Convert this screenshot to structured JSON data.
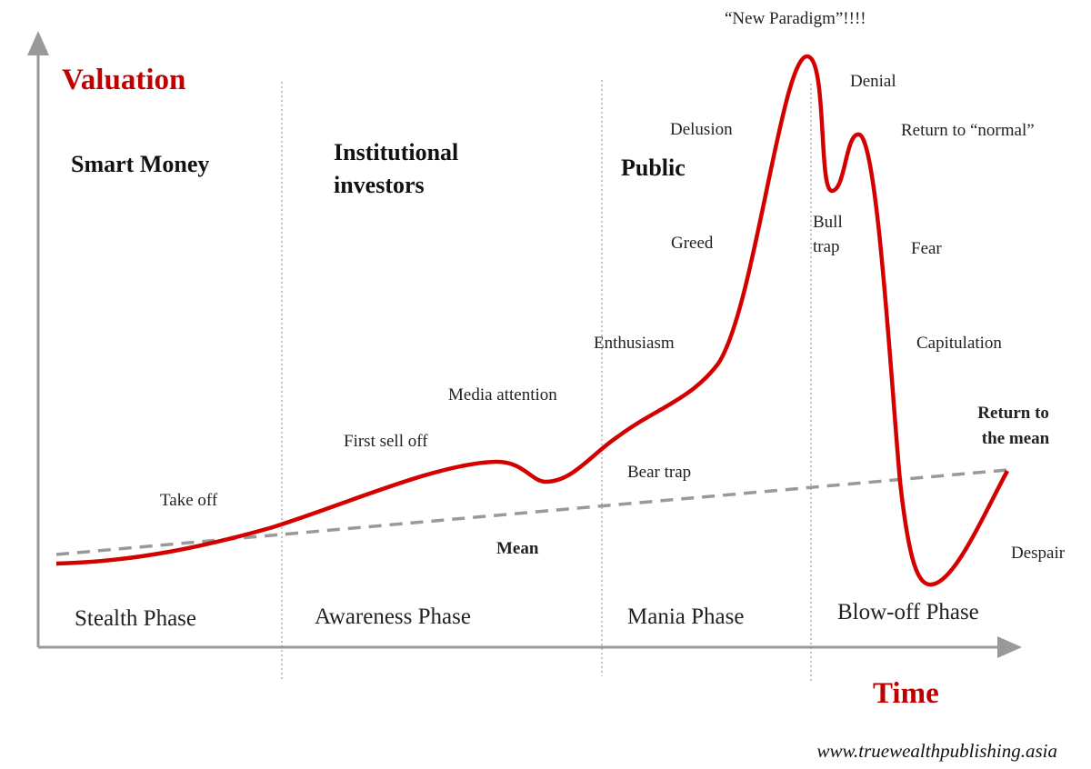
{
  "axes": {
    "y_label": "Valuation",
    "x_label": "Time"
  },
  "participants": {
    "smart_money": "Smart Money",
    "institutional": [
      "Institutional",
      "investors"
    ],
    "public": "Public"
  },
  "phases": [
    "Stealth Phase",
    "Awareness Phase",
    "Mania Phase",
    "Blow-off Phase"
  ],
  "annotations": {
    "take_off": "Take off",
    "first_sell_off": "First sell off",
    "media_attention": "Media attention",
    "bear_trap": "Bear trap",
    "enthusiasm": "Enthusiasm",
    "greed": "Greed",
    "delusion": "Delusion",
    "new_paradigm": "“New Paradigm”!!!!",
    "denial": "Denial",
    "return_to_normal": "Return to “normal”",
    "bull_trap": [
      "Bull",
      "trap"
    ],
    "fear": "Fear",
    "capitulation": "Capitulation",
    "despair": "Despair",
    "mean": "Mean",
    "return_to_mean": [
      "Return to",
      "the mean"
    ]
  },
  "source": "www.truewealthpublishing.asia"
}
